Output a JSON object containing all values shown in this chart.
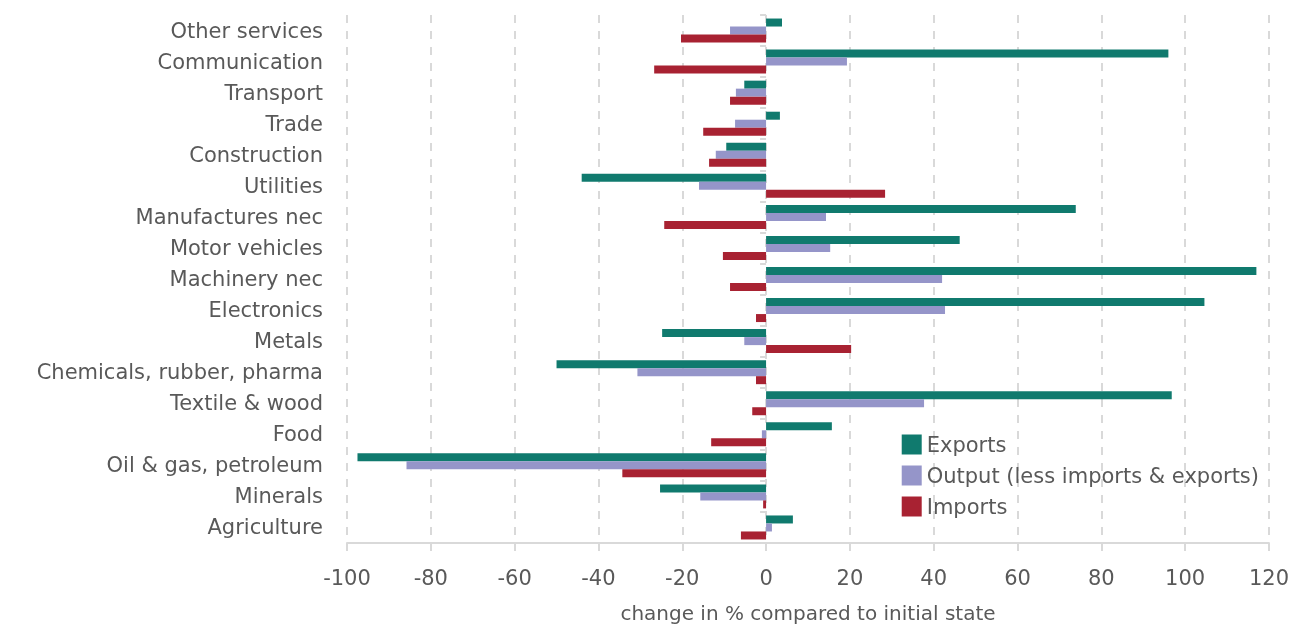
{
  "chart_data": {
    "type": "bar",
    "orientation": "horizontal",
    "xlabel": "change in % compared to initial state",
    "categories": [
      "Other services",
      "Communication",
      "Transport",
      "Trade",
      "Construction",
      "Utilities",
      "Manufactures nec",
      "Motor vehicles",
      "Machinery nec",
      "Electronics",
      "Metals",
      "Chemicals, rubber, pharma",
      "Textile & wood",
      "Food",
      "Oil & gas, petroleum",
      "Minerals",
      "Agriculture"
    ],
    "series": [
      {
        "name": "Exports",
        "color": "#107a6e",
        "values": [
          3.8,
          96,
          -5.2,
          3.3,
          -9.5,
          -44,
          73.9,
          46.2,
          117,
          104.6,
          -24.8,
          -50,
          96.8,
          15.7,
          -97.5,
          -25.3,
          6.4
        ]
      },
      {
        "name": "Output (less imports & exports)",
        "color": "#9595c9",
        "values": [
          -8.6,
          19.3,
          -7.2,
          -7.4,
          -12,
          -16,
          14.3,
          15.3,
          42,
          42.7,
          -5.2,
          -30.7,
          37.7,
          -1,
          -85.8,
          -15.7,
          1.4
        ]
      },
      {
        "name": "Imports",
        "color": "#a82232",
        "values": [
          -20.3,
          -26.7,
          -8.6,
          -15,
          -13.6,
          28.4,
          -24.3,
          -10.3,
          -8.6,
          -2.4,
          20.3,
          -2.4,
          -3.3,
          -13.1,
          -34.3,
          -0.7,
          -6
        ]
      }
    ],
    "xlim": [
      -100,
      120
    ],
    "xticks": [
      -100,
      -80,
      -60,
      -40,
      -20,
      0,
      20,
      40,
      60,
      80,
      100,
      120
    ],
    "grid": "x",
    "legend": "bottom right"
  }
}
